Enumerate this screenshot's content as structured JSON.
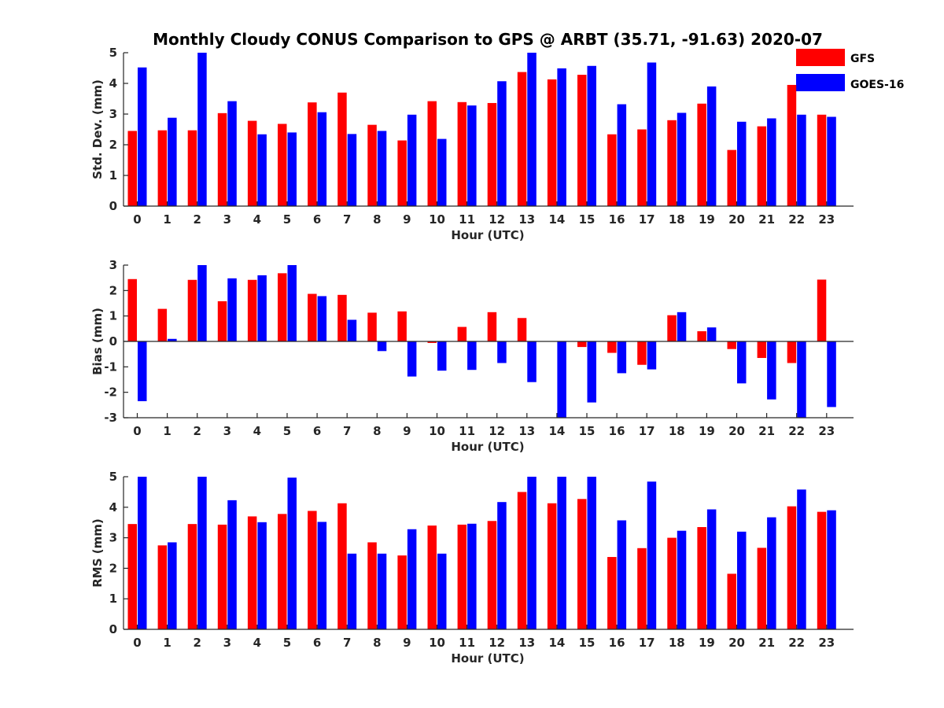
{
  "title": "Monthly Cloudy CONUS Comparison to GPS @ ARBT (35.71, -91.63) 2020-07",
  "legend": [
    {
      "label": "GFS",
      "color": "#ff0000"
    },
    {
      "label": "GOES-16",
      "color": "#0000ff"
    }
  ],
  "chart_data": [
    {
      "type": "bar",
      "categories": [
        "0",
        "1",
        "2",
        "3",
        "4",
        "5",
        "6",
        "7",
        "8",
        "9",
        "10",
        "11",
        "12",
        "13",
        "14",
        "15",
        "16",
        "17",
        "18",
        "19",
        "20",
        "21",
        "22",
        "23"
      ],
      "xlabel": "Hour (UTC)",
      "ylabel": "Std. Dev. (mm)",
      "ylim": [
        0,
        5
      ],
      "yticks": [
        "0",
        "1",
        "2",
        "3",
        "4",
        "5"
      ],
      "series": [
        {
          "name": "GFS",
          "color": "#ff0000",
          "values": [
            2.45,
            2.47,
            2.47,
            3.03,
            2.78,
            2.68,
            3.38,
            3.7,
            2.65,
            2.14,
            3.42,
            3.39,
            3.36,
            4.37,
            4.13,
            4.28,
            2.34,
            2.5,
            2.8,
            3.34,
            1.83,
            2.6,
            3.95,
            2.98
          ]
        },
        {
          "name": "GOES-16",
          "color": "#0000ff",
          "values": [
            4.52,
            2.88,
            5.0,
            3.42,
            2.34,
            2.4,
            3.06,
            2.35,
            2.45,
            2.98,
            2.19,
            3.28,
            4.07,
            5.0,
            4.49,
            4.57,
            3.32,
            4.68,
            3.04,
            3.9,
            2.75,
            2.86,
            2.98,
            2.91
          ]
        }
      ]
    },
    {
      "type": "bar",
      "categories": [
        "0",
        "1",
        "2",
        "3",
        "4",
        "5",
        "6",
        "7",
        "8",
        "9",
        "10",
        "11",
        "12",
        "13",
        "14",
        "15",
        "16",
        "17",
        "18",
        "19",
        "20",
        "21",
        "22",
        "23"
      ],
      "xlabel": "Hour (UTC)",
      "ylabel": "Bias (mm)",
      "ylim": [
        -3,
        3
      ],
      "yticks": [
        "-3",
        "-2",
        "-1",
        "0",
        "1",
        "2",
        "3"
      ],
      "series": [
        {
          "name": "GFS",
          "color": "#ff0000",
          "values": [
            2.45,
            1.28,
            2.42,
            1.58,
            2.42,
            2.68,
            1.87,
            1.83,
            1.13,
            1.18,
            -0.06,
            0.57,
            1.15,
            0.92,
            0.0,
            -0.22,
            -0.45,
            -0.92,
            1.03,
            0.4,
            -0.3,
            -0.65,
            -0.85,
            2.43
          ]
        },
        {
          "name": "GOES-16",
          "color": "#0000ff",
          "values": [
            -2.35,
            0.1,
            3.0,
            2.48,
            2.6,
            3.0,
            1.78,
            0.85,
            -0.38,
            -1.38,
            -1.15,
            -1.12,
            -0.85,
            -1.6,
            -3.0,
            -2.4,
            -1.25,
            -1.1,
            1.15,
            0.55,
            -1.65,
            -2.28,
            -3.0,
            -2.58
          ]
        }
      ]
    },
    {
      "type": "bar",
      "categories": [
        "0",
        "1",
        "2",
        "3",
        "4",
        "5",
        "6",
        "7",
        "8",
        "9",
        "10",
        "11",
        "12",
        "13",
        "14",
        "15",
        "16",
        "17",
        "18",
        "19",
        "20",
        "21",
        "22",
        "23"
      ],
      "xlabel": "Hour (UTC)",
      "ylabel": "RMS (mm)",
      "ylim": [
        0,
        5
      ],
      "yticks": [
        "0",
        "1",
        "2",
        "3",
        "4",
        "5"
      ],
      "series": [
        {
          "name": "GFS",
          "color": "#ff0000",
          "values": [
            3.45,
            2.75,
            3.45,
            3.43,
            3.7,
            3.78,
            3.88,
            4.13,
            2.85,
            2.42,
            3.4,
            3.43,
            3.55,
            4.5,
            4.13,
            4.27,
            2.37,
            2.66,
            3.0,
            3.35,
            1.82,
            2.67,
            4.03,
            3.85
          ]
        },
        {
          "name": "GOES-16",
          "color": "#0000ff",
          "values": [
            5.0,
            2.85,
            5.0,
            4.23,
            3.51,
            4.97,
            3.52,
            2.48,
            2.48,
            3.28,
            2.48,
            3.46,
            4.17,
            5.0,
            5.0,
            5.0,
            3.57,
            4.84,
            3.23,
            3.93,
            3.2,
            3.67,
            4.58,
            3.9
          ]
        }
      ]
    }
  ]
}
